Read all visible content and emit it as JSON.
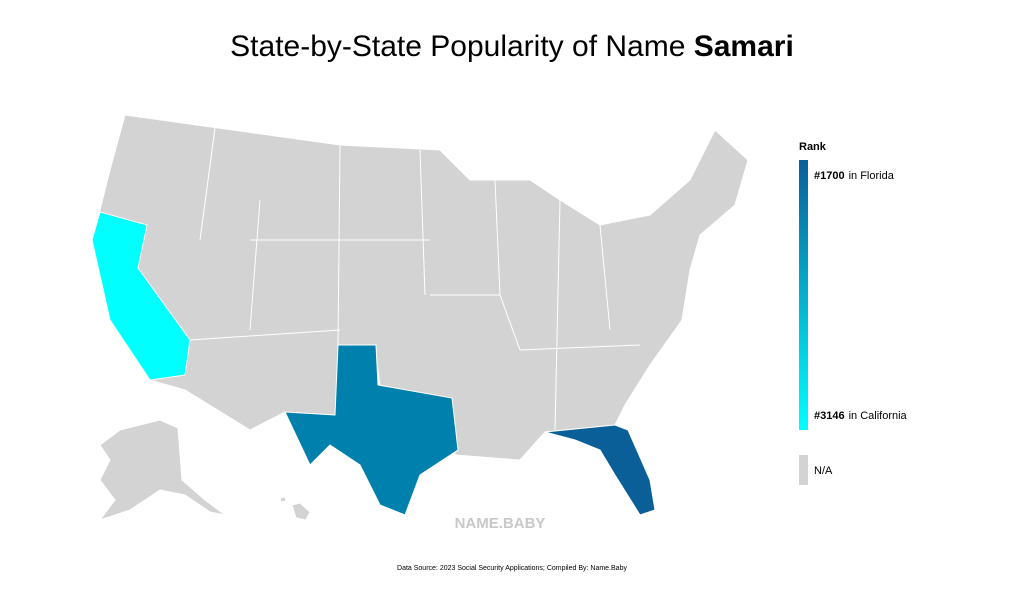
{
  "title": {
    "prefix": "State-by-State Popularity of Name ",
    "name": "Samari"
  },
  "legend": {
    "title": "Rank",
    "top": {
      "rank": "#1700",
      "state": "in Florida",
      "color": "#0a5f98"
    },
    "bottom": {
      "rank": "#3146",
      "state": "in California",
      "color": "#00ffff"
    },
    "na": {
      "label": "N/A",
      "color": "#d3d3d3"
    }
  },
  "regions": [
    {
      "color": "#00ffff"
    },
    {
      "color": "#0080ad"
    },
    {
      "color": "#0a5f98"
    }
  ],
  "watermark": "NAME.BABY",
  "source": "Data Source: 2023 Social Security Applications; Compiled By: Name.Baby"
}
